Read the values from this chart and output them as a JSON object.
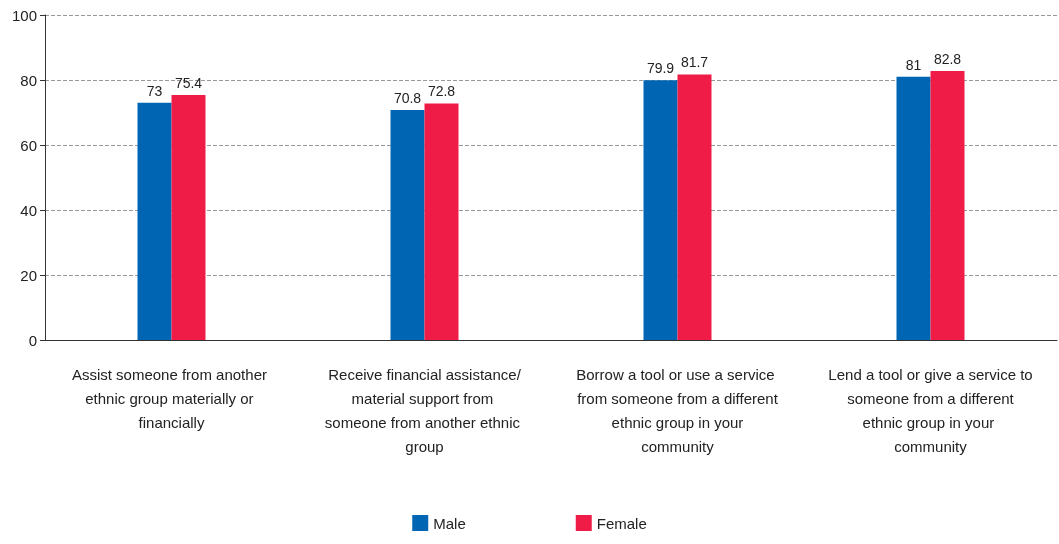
{
  "chart_data": {
    "type": "bar",
    "categories": [
      "Assist someone from another ethnic group materially or financially",
      "Receive financial assistance/material support from someone from another ethnic group",
      "Borrow a tool or use a service from someone from a different ethnic group in your community",
      "Lend a tool or give a service to someone from a different ethnic group in your community"
    ],
    "series": [
      {
        "name": "Male",
        "color": "#0066b3",
        "values": [
          73,
          70.8,
          79.9,
          81
        ]
      },
      {
        "name": "Female",
        "color": "#ee1c47",
        "values": [
          75.4,
          72.8,
          81.7,
          82.8
        ]
      }
    ],
    "ylim": [
      0,
      100
    ],
    "yticks": [
      0,
      20,
      40,
      60,
      80,
      100
    ],
    "grid": "y",
    "data_labels": true,
    "legend": "bottom"
  }
}
